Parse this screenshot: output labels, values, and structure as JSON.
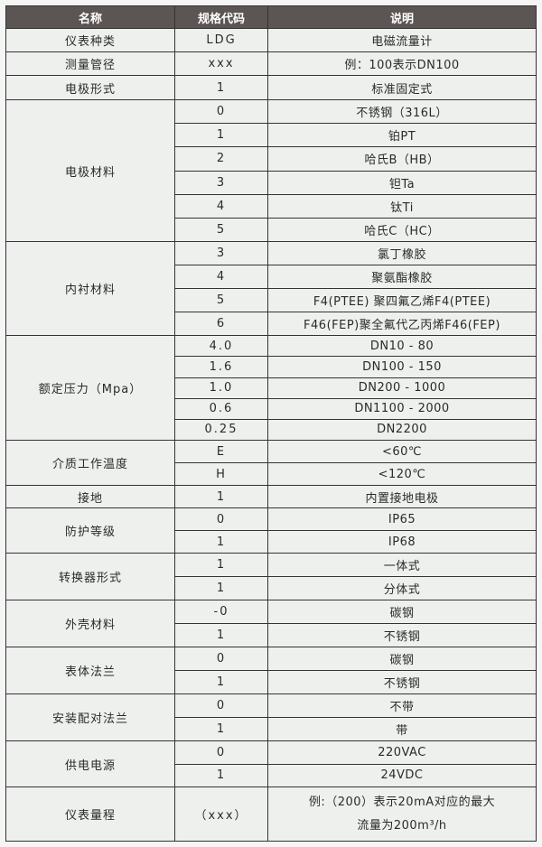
{
  "header": {
    "name": "名称",
    "code": "规格代码",
    "desc": "说明"
  },
  "groups": [
    {
      "name": "仪表种类",
      "items": [
        [
          "LDG",
          "电磁流量计"
        ]
      ]
    },
    {
      "name": "测量管径",
      "items": [
        [
          "xxx",
          "例：100表示DN100"
        ]
      ]
    },
    {
      "name": "电极形式",
      "items": [
        [
          "1",
          "标准固定式"
        ]
      ]
    },
    {
      "name": "电极材料",
      "items": [
        [
          "0",
          "不锈钢（316L）"
        ],
        [
          "1",
          "铂PT"
        ],
        [
          "2",
          "哈氏B（HB）"
        ],
        [
          "3",
          "钽Ta"
        ],
        [
          "4",
          "钛Ti"
        ],
        [
          "5",
          "哈氏C（HC）"
        ]
      ]
    },
    {
      "name": "内衬材料",
      "items": [
        [
          "3",
          "氯丁橡胶"
        ],
        [
          "4",
          "聚氨酯橡胶"
        ],
        [
          "5",
          "F4(PTEE) 聚四氟乙烯F4(PTEE)"
        ],
        [
          "6",
          "F46(FEP)聚全氟代乙丙烯F46(FEP)"
        ]
      ]
    },
    {
      "name": "额定压力（Mpa）",
      "items": [
        [
          "4.0",
          "DN10 - 80"
        ],
        [
          "1.6",
          "DN100 - 150"
        ],
        [
          "1.0",
          "DN200 - 1000"
        ],
        [
          "0.6",
          "DN1100 - 2000"
        ],
        [
          "0.25",
          "DN2200"
        ]
      ]
    },
    {
      "name": "介质工作温度",
      "items": [
        [
          "E",
          "<60℃"
        ],
        [
          "H",
          "<120℃"
        ]
      ]
    },
    {
      "name": "接地",
      "items": [
        [
          "1",
          "内置接地电极"
        ]
      ]
    },
    {
      "name": "防护等级",
      "items": [
        [
          "0",
          "IP65"
        ],
        [
          "1",
          "IP68"
        ]
      ]
    },
    {
      "name": "转换器形式",
      "items": [
        [
          "1",
          "一体式"
        ],
        [
          "1",
          "分体式"
        ]
      ]
    },
    {
      "name": "外壳材料",
      "items": [
        [
          "-0",
          "碳钢"
        ],
        [
          "1",
          "不锈钢"
        ]
      ]
    },
    {
      "name": "表体法兰",
      "items": [
        [
          "0",
          "碳钢"
        ],
        [
          "1",
          "不锈钢"
        ]
      ]
    },
    {
      "name": "安装配对法兰",
      "items": [
        [
          "0",
          "不带"
        ],
        [
          "1",
          "带"
        ]
      ]
    },
    {
      "name": "供电电源",
      "items": [
        [
          "0",
          "220VAC"
        ],
        [
          "1",
          "24VDC"
        ]
      ]
    },
    {
      "name": "仪表量程",
      "items": [
        [
          "（xxx）",
          "例:（200）表示20mA对应的最大流量为200m³/h"
        ]
      ]
    }
  ]
}
